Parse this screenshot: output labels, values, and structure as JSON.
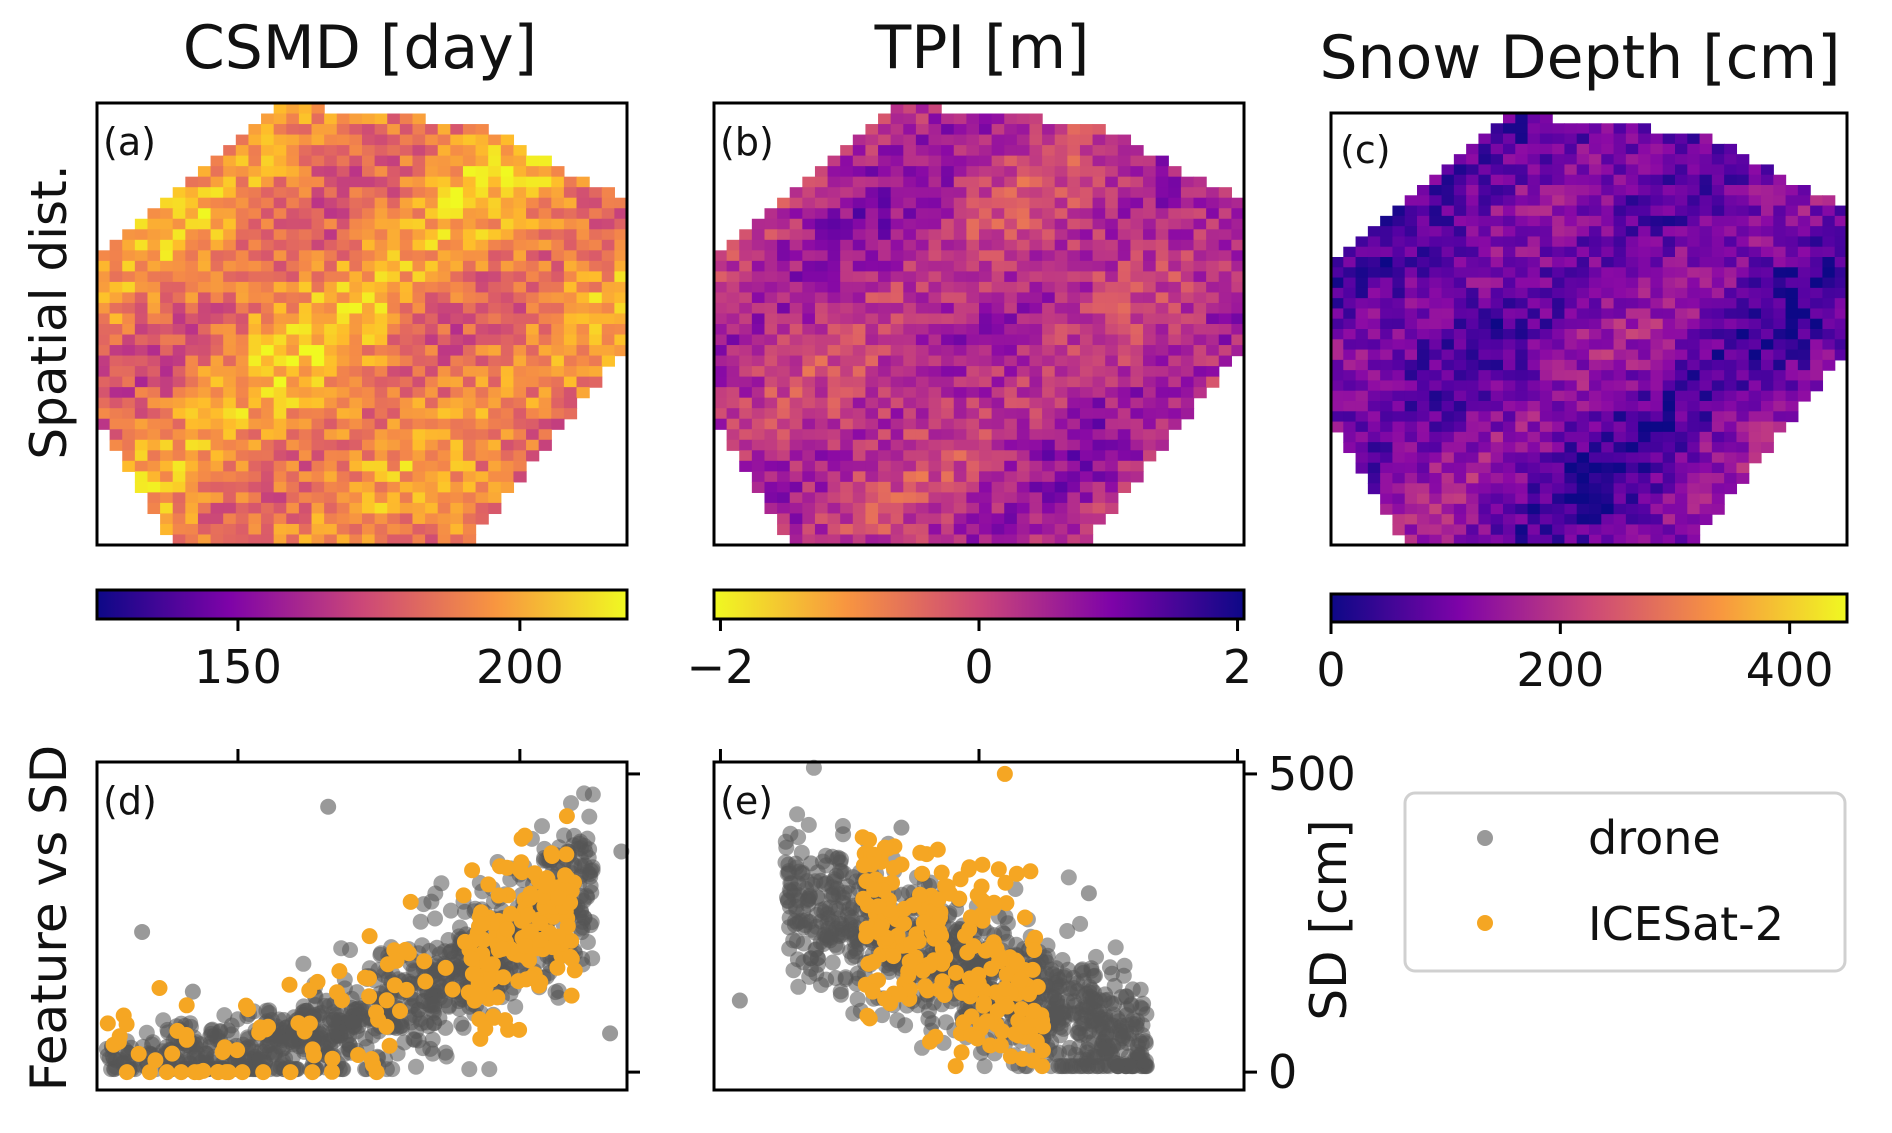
{
  "chart_data": [
    {
      "id": "a",
      "type": "heatmap",
      "panel_label": "(a)",
      "title": "CSMD [day]",
      "row_label": "Spatial dist.",
      "colormap": "plasma",
      "colorbar": {
        "range": [
          125,
          219
        ],
        "ticks": [
          150,
          200
        ],
        "tick_labels": [
          "150",
          "200"
        ],
        "reversed": false
      },
      "field_mean_fraction": 0.72,
      "grid_resolution": "about 42 x 42 cells, irregular footprint"
    },
    {
      "id": "b",
      "type": "heatmap",
      "panel_label": "(b)",
      "title": "TPI [m]",
      "colormap": "plasma_r",
      "colorbar": {
        "range": [
          -2.05,
          2.05
        ],
        "ticks": [
          -2,
          0,
          2
        ],
        "tick_labels": [
          "−2",
          "0",
          "2"
        ],
        "reversed": true
      },
      "field_mean_fraction": 0.42,
      "grid_resolution": "about 42 x 42 cells, irregular footprint"
    },
    {
      "id": "c",
      "type": "heatmap",
      "panel_label": "(c)",
      "title": "Snow Depth [cm]",
      "colormap": "plasma",
      "colorbar": {
        "range": [
          0,
          450
        ],
        "ticks": [
          0,
          200,
          400
        ],
        "tick_labels": [
          "0",
          "200",
          "400"
        ],
        "reversed": false
      },
      "field_mean_fraction": 0.22,
      "grid_resolution": "about 42 x 42 cells, irregular footprint"
    },
    {
      "id": "d",
      "type": "scatter",
      "panel_label": "(d)",
      "row_label": "Feature vs SD",
      "x_range": [
        125,
        219
      ],
      "x_ticks": [
        150,
        200
      ],
      "y_range": [
        -30,
        520
      ],
      "y_ticks": [
        0,
        500
      ],
      "series": [
        {
          "name": "drone",
          "color": "#555555",
          "alpha": 0.55,
          "count": 950,
          "trend": "snow depth rises from about 20 cm at CSMD 125 to about 330 cm at CSMD 210; spread widens with CSMD"
        },
        {
          "name": "ICESat-2",
          "color": "#f5a623",
          "alpha": 1.0,
          "count": 230,
          "trend": "follows drone cloud, concentrated between CSMD 190 and 210 at 150-400 cm"
        }
      ],
      "outliers": [
        [
          166,
          445
        ],
        [
          142,
          135
        ],
        [
          133,
          235
        ],
        [
          218,
          370
        ],
        [
          216,
          65
        ]
      ]
    },
    {
      "id": "e",
      "type": "scatter",
      "panel_label": "(e)",
      "x_range": [
        -2.05,
        2.05
      ],
      "x_ticks": [
        -2,
        0,
        2
      ],
      "y_range": [
        -30,
        520
      ],
      "y_ticks": [
        0,
        500
      ],
      "ylabel": "SD [cm]",
      "series": [
        {
          "name": "drone",
          "color": "#555555",
          "alpha": 0.55,
          "count": 950,
          "trend": "snow depth decreases from about 270 cm at TPI -1.3 to about 50 cm at TPI 1.2"
        },
        {
          "name": "ICESat-2",
          "color": "#f5a623",
          "alpha": 1.0,
          "count": 230,
          "trend": "concentrated between TPI -0.8 and 0.5 at 30-350 cm"
        }
      ],
      "outliers": [
        [
          0.2,
          500
        ],
        [
          -1.85,
          120
        ],
        [
          -1.3,
          350
        ],
        [
          -0.6,
          410
        ],
        [
          0.85,
          300
        ]
      ]
    }
  ],
  "legend": {
    "placement": "right of panel (e)",
    "items": [
      {
        "label": "drone",
        "color": "#555555"
      },
      {
        "label": "ICESat-2",
        "color": "#f5a623"
      }
    ]
  }
}
